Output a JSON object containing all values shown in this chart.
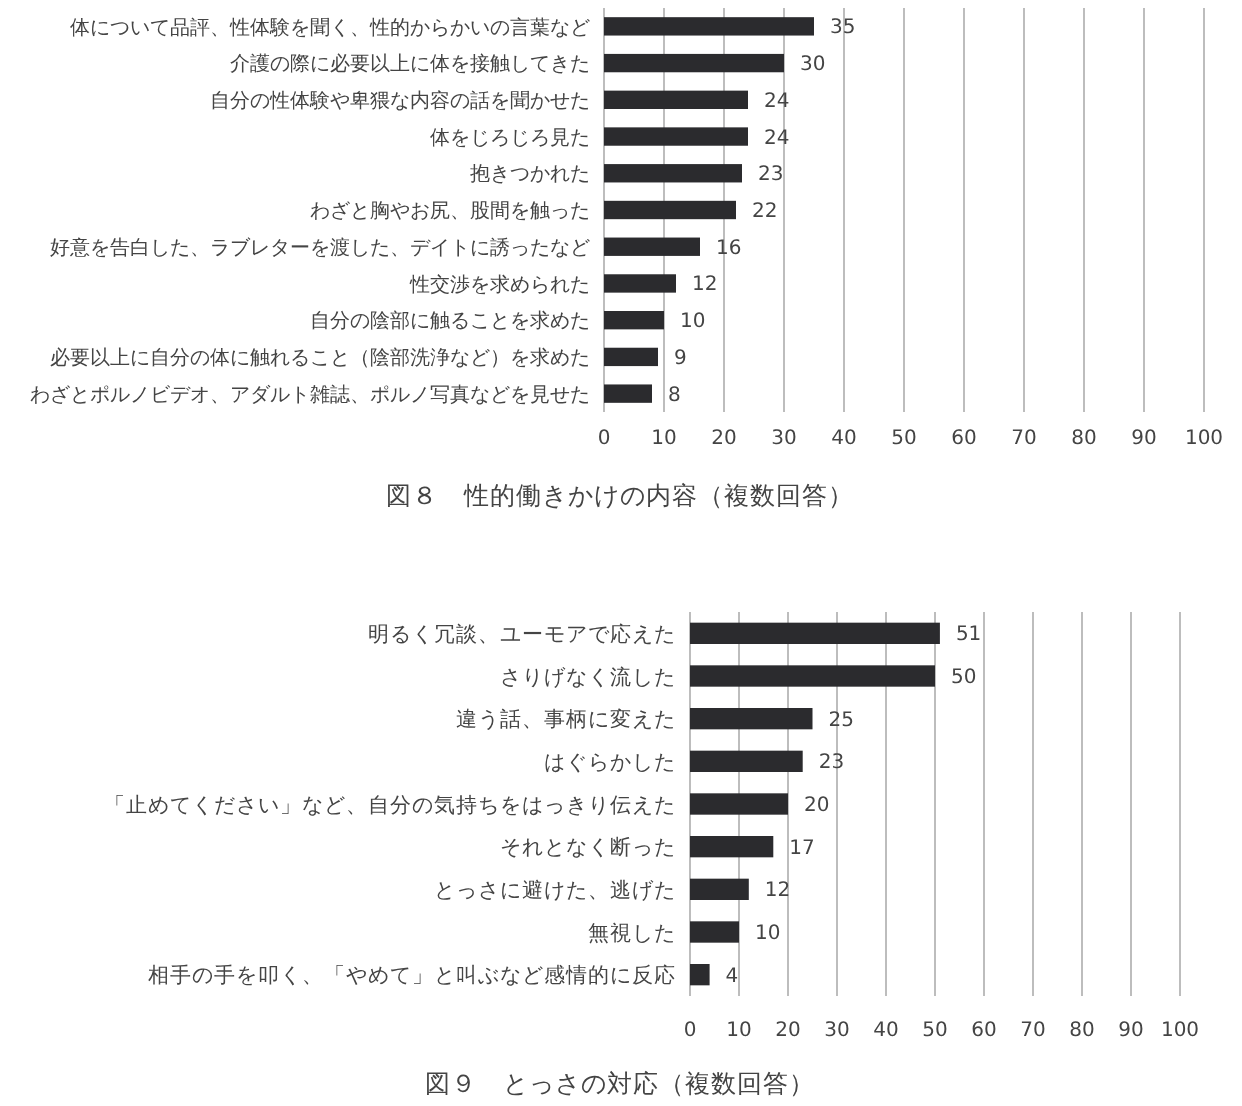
{
  "chart_data": [
    {
      "type": "bar",
      "orientation": "horizontal",
      "title": "図８　性的働きかけの内容（複数回答）",
      "categories": [
        "体について品評、性体験を聞く、性的からかいの言葉など",
        "介護の際に必要以上に体を接触してきた",
        "自分の性体験や卑猥な内容の話を聞かせた",
        "体をじろじろ見た",
        "抱きつかれた",
        "わざと胸やお尻、股間を触った",
        "好意を告白した、ラブレターを渡した、デイトに誘ったなど",
        "性交渉を求められた",
        "自分の陰部に触ることを求めた",
        "必要以上に自分の体に触れること（陰部洗浄など）を求めた",
        "わざとポルノビデオ、アダルト雑誌、ポルノ写真などを見せた"
      ],
      "values": [
        35,
        30,
        24,
        24,
        23,
        22,
        16,
        12,
        10,
        9,
        8
      ],
      "color": "#2b2b2e",
      "xlim": [
        0,
        100
      ],
      "xticks": [
        0,
        10,
        20,
        30,
        40,
        50,
        60,
        70,
        80,
        90,
        100
      ],
      "grid": "x",
      "data_labels": true
    },
    {
      "type": "bar",
      "orientation": "horizontal",
      "title": "図９　とっさの対応（複数回答）",
      "categories": [
        "明るく冗談、ユーモアで応えた",
        "さりげなく流した",
        "違う話、事柄に変えた",
        "はぐらかした",
        "「止めてください」など、自分の気持ちをはっきり伝えた",
        "それとなく断った",
        "とっさに避けた、逃げた",
        "無視した",
        "相手の手を叩く、「やめて」と叫ぶなど感情的に反応"
      ],
      "values": [
        51,
        50,
        25,
        23,
        20,
        17,
        12,
        10,
        4
      ],
      "color": "#2b2b2e",
      "xlim": [
        0,
        100
      ],
      "xticks": [
        0,
        10,
        20,
        30,
        40,
        50,
        60,
        70,
        80,
        90,
        100
      ],
      "grid": "x",
      "data_labels": true
    }
  ]
}
